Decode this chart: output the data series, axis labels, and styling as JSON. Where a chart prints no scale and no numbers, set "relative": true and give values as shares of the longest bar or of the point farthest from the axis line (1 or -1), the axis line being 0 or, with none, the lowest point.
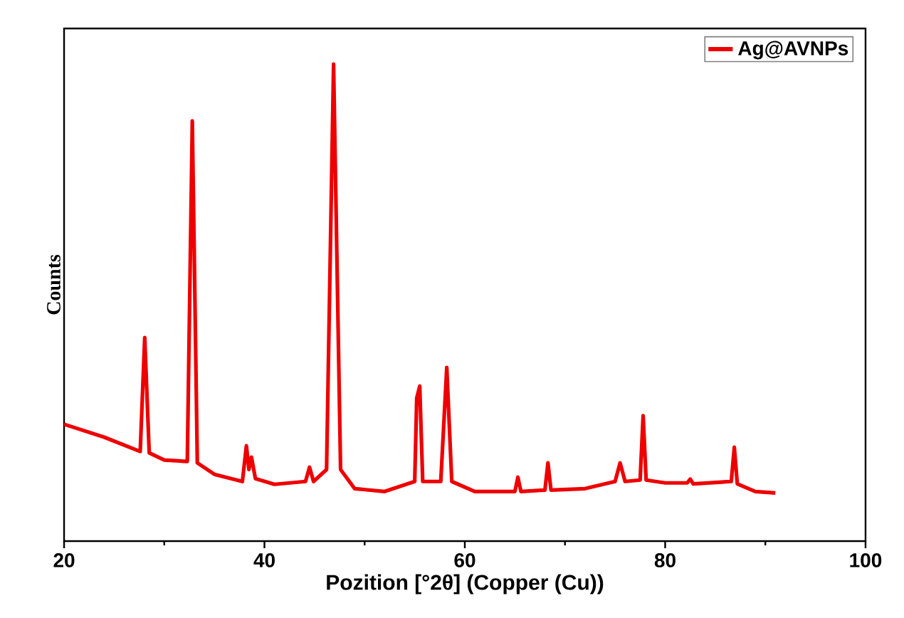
{
  "chart_data": {
    "type": "line",
    "xlabel": "Pozition [°2θ] (Copper (Cu))",
    "ylabel": "Counts",
    "relative": true,
    "xlim": [
      20,
      100
    ],
    "xticks": [
      20,
      40,
      60,
      80,
      100
    ],
    "legend": "top right",
    "marker": "none",
    "line_style": "solid",
    "series": [
      {
        "name": "Ag@AVNPs",
        "color": "#ee0000",
        "x": [
          20,
          24,
          27.6,
          28.05,
          28.5,
          30,
          32.3,
          32.8,
          33.3,
          35,
          37.8,
          38.2,
          38.45,
          38.7,
          39.1,
          41,
          44.1,
          44.5,
          44.9,
          46.2,
          46.9,
          47.6,
          49,
          52,
          55.0,
          55.2,
          55.5,
          55.8,
          57.6,
          58.2,
          58.7,
          61,
          65.0,
          65.3,
          65.6,
          68.0,
          68.3,
          68.6,
          72,
          75.0,
          75.5,
          76.0,
          77.5,
          77.8,
          78.1,
          80,
          82.2,
          82.5,
          82.8,
          86.6,
          86.9,
          87.2,
          89,
          91
        ],
        "values": [
          0.245,
          0.218,
          0.188,
          0.427,
          0.185,
          0.17,
          0.167,
          0.881,
          0.164,
          0.14,
          0.125,
          0.2,
          0.15,
          0.176,
          0.131,
          0.119,
          0.125,
          0.155,
          0.125,
          0.15,
          1.0,
          0.15,
          0.11,
          0.104,
          0.125,
          0.3,
          0.325,
          0.125,
          0.125,
          0.364,
          0.125,
          0.104,
          0.104,
          0.134,
          0.104,
          0.107,
          0.164,
          0.107,
          0.11,
          0.125,
          0.164,
          0.125,
          0.128,
          0.263,
          0.128,
          0.122,
          0.122,
          0.13,
          0.12,
          0.125,
          0.197,
          0.12,
          0.104,
          0.101
        ]
      }
    ]
  }
}
